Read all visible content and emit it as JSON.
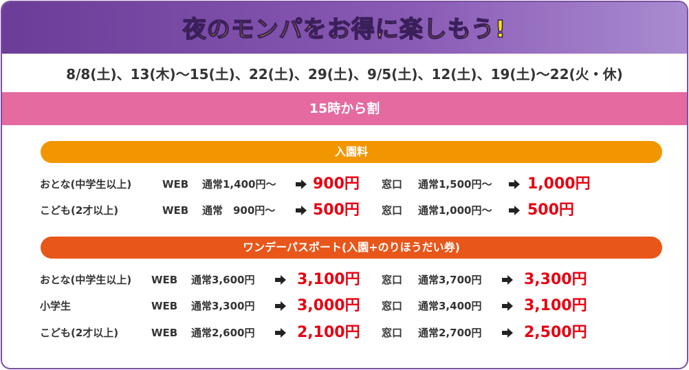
{
  "header": {
    "title": "夜のモンパをお得に楽しもう!"
  },
  "dates": "8/8(土)、13(木)〜15(土)、22(土)、29(土)、9/5(土)、12(土)、19(土)〜22(火・休)",
  "banner": "15時から割",
  "sections": [
    {
      "title": "入園料",
      "rows": [
        {
          "label": "おとな(中学生以上)",
          "web": "WEB",
          "web_regular": "通常1,400円〜",
          "web_price": "900円",
          "counter": "窓口",
          "counter_regular": "通常1,500円〜",
          "counter_price": "1,000円"
        },
        {
          "label": "こども(2才以上)",
          "web": "WEB",
          "web_regular": "通常　900円〜",
          "web_price": "500円",
          "counter": "窓口",
          "counter_regular": "通常1,000円〜",
          "counter_price": "500円"
        }
      ]
    },
    {
      "title": "ワンデーパスポート(入園+のりほうだい券)",
      "rows": [
        {
          "label": "おとな(中学生以上)",
          "web": "WEB",
          "web_regular": "通常3,600円",
          "web_price": "3,100円",
          "counter": "窓口",
          "counter_regular": "通常3,700円",
          "counter_price": "3,300円"
        },
        {
          "label": "小学生",
          "web": "WEB",
          "web_regular": "通常3,300円",
          "web_price": "3,000円",
          "counter": "窓口",
          "counter_regular": "通常3,400円",
          "counter_price": "3,100円"
        },
        {
          "label": "こども(2才以上)",
          "web": "WEB",
          "web_regular": "通常2,600円",
          "web_price": "2,100円",
          "counter": "窓口",
          "counter_regular": "通常2,700円",
          "counter_price": "2,500円"
        }
      ]
    }
  ]
}
